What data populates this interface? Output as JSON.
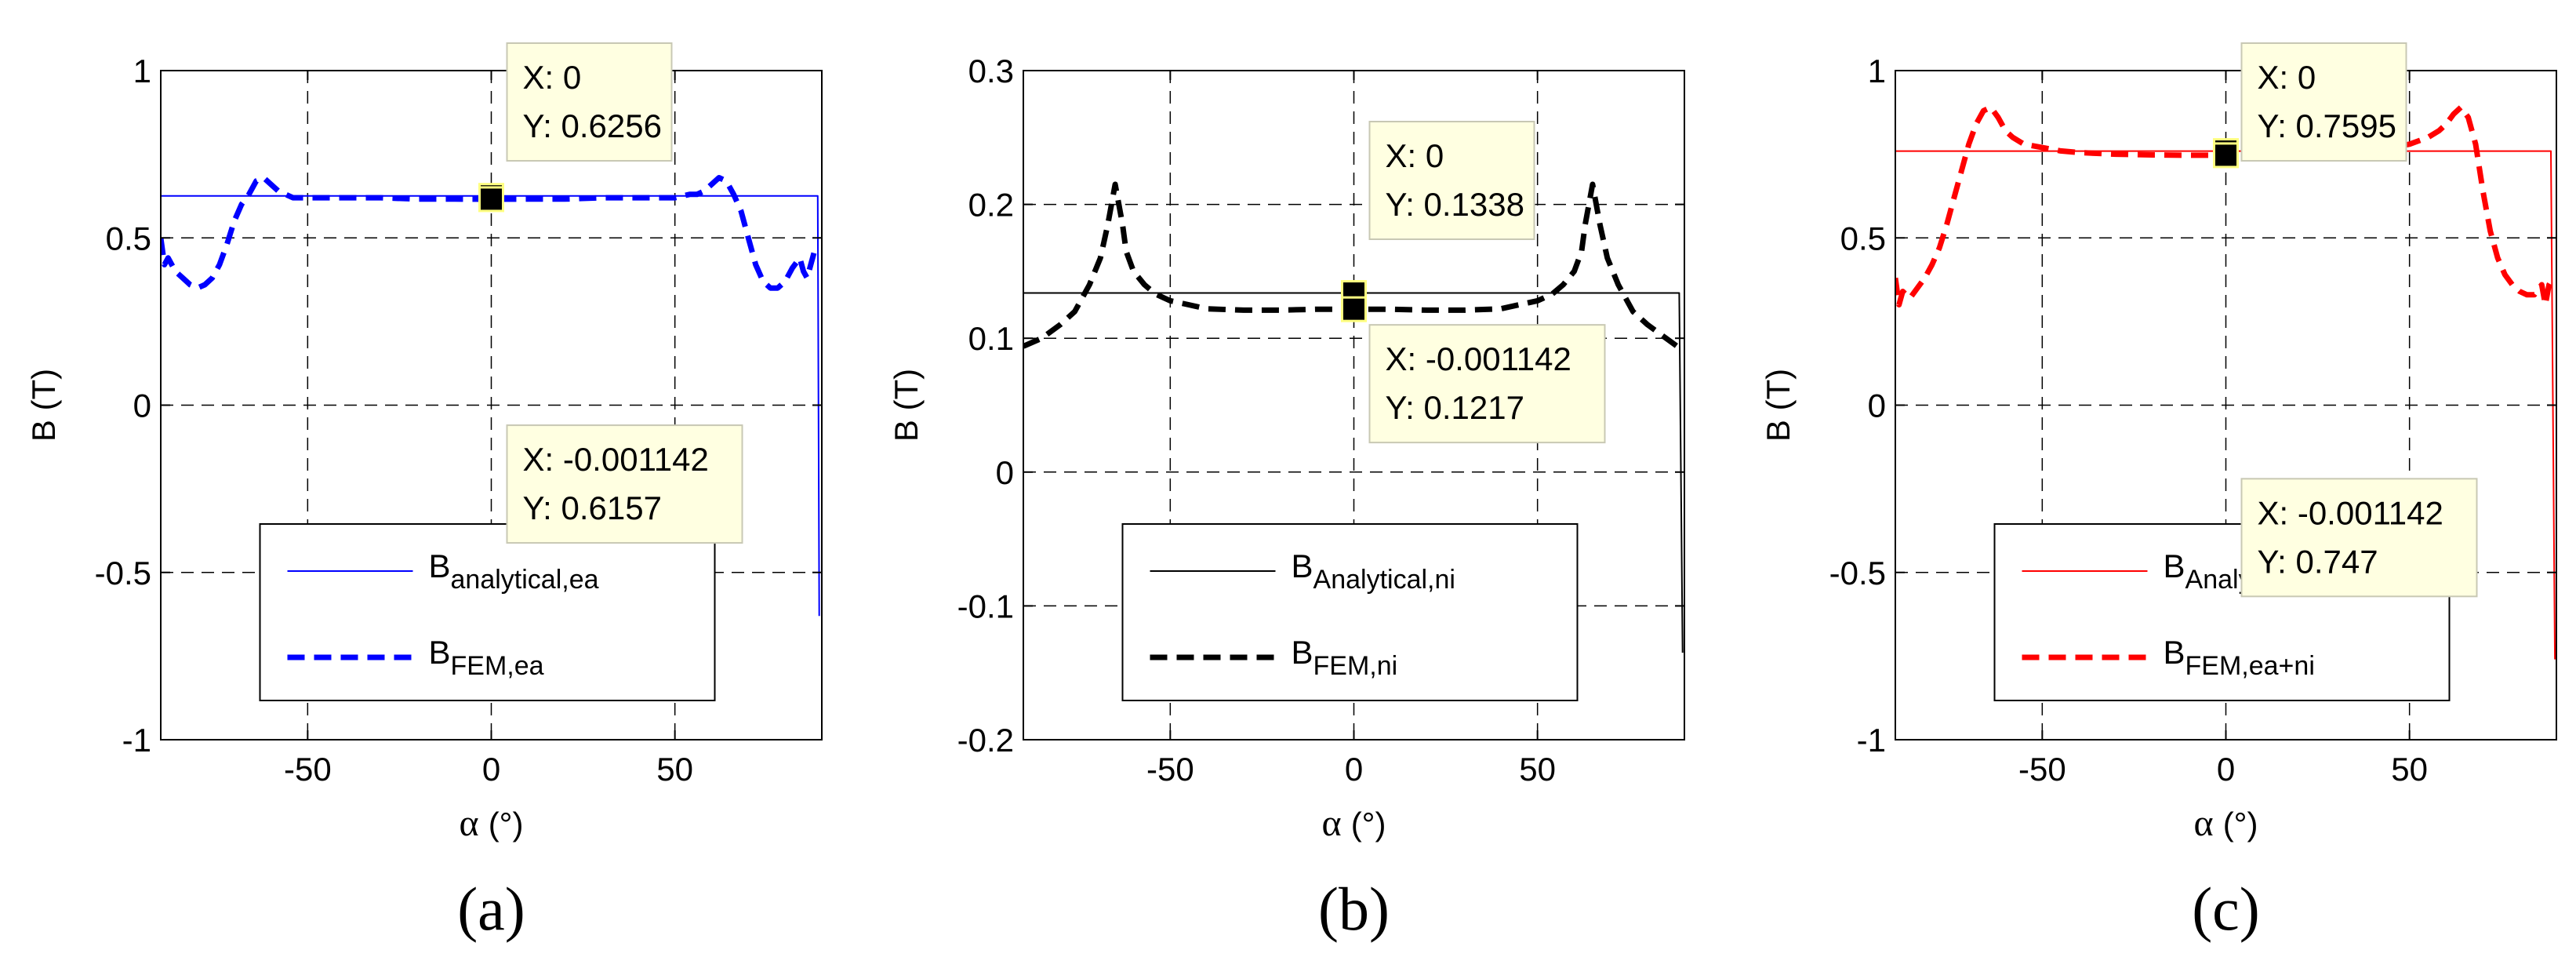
{
  "chart_data": [
    {
      "type": "line",
      "caption": "(a)",
      "xlabel_symbol": "α",
      "xlabel_unit": "(°)",
      "ylabel": "B (T)",
      "xlim": [
        -90,
        90
      ],
      "ylim": [
        -1,
        1
      ],
      "xticks": [
        -50,
        0,
        50
      ],
      "xtick_labels": [
        "-50",
        "0",
        "50"
      ],
      "yticks": [
        -1,
        -0.5,
        0,
        0.5,
        1
      ],
      "ytick_labels": [
        "-1",
        "-0.5",
        "0",
        "0.5",
        "1"
      ],
      "grid": true,
      "legend_position": "bottom-center",
      "series": [
        {
          "name": "analytical",
          "legend_main": "B",
          "legend_sub": "analytical,ea",
          "color": "#0000ff",
          "style": "solid",
          "x": [
            -90,
            88.9,
            89.3
          ],
          "y": [
            0.6256,
            0.6256,
            -0.63
          ]
        },
        {
          "name": "fem",
          "legend_main": "B",
          "legend_sub": "FEM,ea",
          "color": "#0000ff",
          "style": "dashed",
          "x": [
            -90,
            -89,
            -88,
            -86,
            -84,
            -82,
            -80,
            -78,
            -76,
            -74,
            -72,
            -70,
            -68,
            -66,
            -64,
            -62,
            -60,
            -58,
            -56,
            -54,
            -50,
            -40,
            -30,
            -20,
            -10,
            0,
            10,
            20,
            30,
            40,
            50,
            54,
            56,
            58,
            60,
            62,
            64,
            66,
            68,
            70,
            72,
            74,
            76,
            78,
            80,
            82,
            84,
            85,
            86,
            87,
            88,
            89
          ],
          "y": [
            0.5,
            0.42,
            0.44,
            0.4,
            0.38,
            0.36,
            0.35,
            0.36,
            0.38,
            0.42,
            0.48,
            0.55,
            0.6,
            0.63,
            0.67,
            0.68,
            0.66,
            0.64,
            0.63,
            0.62,
            0.62,
            0.62,
            0.62,
            0.616,
            0.616,
            0.6157,
            0.616,
            0.616,
            0.62,
            0.62,
            0.62,
            0.63,
            0.63,
            0.64,
            0.66,
            0.68,
            0.67,
            0.63,
            0.58,
            0.5,
            0.42,
            0.37,
            0.35,
            0.35,
            0.37,
            0.41,
            0.44,
            0.4,
            0.38,
            0.42,
            0.46,
            0.48
          ]
        }
      ],
      "datatips": [
        {
          "x": 0,
          "y": 0.6256,
          "x_label": "X: 0",
          "y_label": "Y: 0.6256",
          "side": "above"
        },
        {
          "x": -0.001142,
          "y": 0.6157,
          "x_label": "X: -0.001142",
          "y_label": "Y: 0.6157",
          "side": "below"
        }
      ]
    },
    {
      "type": "line",
      "caption": "(b)",
      "xlabel_symbol": "α",
      "xlabel_unit": "(°)",
      "ylabel": "B (T)",
      "xlim": [
        -90,
        90
      ],
      "ylim": [
        -0.2,
        0.3
      ],
      "xticks": [
        -50,
        0,
        50
      ],
      "xtick_labels": [
        "-50",
        "0",
        "50"
      ],
      "yticks": [
        -0.2,
        -0.1,
        0,
        0.1,
        0.2,
        0.3
      ],
      "ytick_labels": [
        "-0.2",
        "-0.1",
        "0",
        "0.1",
        "0.2",
        "0.3"
      ],
      "grid": true,
      "legend_position": "bottom-center",
      "series": [
        {
          "name": "analytical",
          "legend_main": "B",
          "legend_sub": "Analytical,ni",
          "color": "#000000",
          "style": "solid",
          "x": [
            -90,
            88.6,
            89.5
          ],
          "y": [
            0.1338,
            0.1338,
            -0.135
          ]
        },
        {
          "name": "fem",
          "legend_main": "B",
          "legend_sub": "FEM,ni",
          "color": "#000000",
          "style": "dashed",
          "x": [
            -90,
            -85,
            -80,
            -76,
            -72,
            -69,
            -67,
            -66,
            -65,
            -64,
            -63,
            -62,
            -60,
            -57,
            -54,
            -50,
            -45,
            -40,
            -30,
            -20,
            -10,
            0,
            10,
            20,
            30,
            40,
            45,
            50,
            54,
            57,
            60,
            62,
            63,
            64,
            65,
            66,
            67,
            69,
            72,
            76,
            80,
            85,
            88,
            89
          ],
          "y": [
            0.094,
            0.1,
            0.11,
            0.12,
            0.14,
            0.16,
            0.185,
            0.2,
            0.215,
            0.2,
            0.185,
            0.165,
            0.15,
            0.14,
            0.133,
            0.128,
            0.125,
            0.122,
            0.121,
            0.121,
            0.1217,
            0.1217,
            0.1217,
            0.121,
            0.121,
            0.122,
            0.125,
            0.128,
            0.133,
            0.14,
            0.15,
            0.165,
            0.185,
            0.2,
            0.215,
            0.2,
            0.185,
            0.16,
            0.14,
            0.12,
            0.11,
            0.1,
            0.094,
            0.092
          ]
        }
      ],
      "datatips": [
        {
          "x": 0,
          "y": 0.1338,
          "x_label": "X: 0",
          "y_label": "Y: 0.1338",
          "side": "above"
        },
        {
          "x": -0.001142,
          "y": 0.1217,
          "x_label": "X: -0.001142",
          "y_label": "Y: 0.1217",
          "side": "below"
        }
      ]
    },
    {
      "type": "line",
      "caption": "(c)",
      "xlabel_symbol": "α",
      "xlabel_unit": "(°)",
      "ylabel": "B (T)",
      "xlim": [
        -90,
        90
      ],
      "ylim": [
        -1,
        1
      ],
      "xticks": [
        -50,
        0,
        50
      ],
      "xtick_labels": [
        "-50",
        "0",
        "50"
      ],
      "yticks": [
        -1,
        -0.5,
        0,
        0.5,
        1
      ],
      "ytick_labels": [
        "-1",
        "-0.5",
        "0",
        "0.5",
        "1"
      ],
      "grid": true,
      "legend_position": "bottom-center",
      "series": [
        {
          "name": "analytical",
          "legend_main": "B",
          "legend_sub": "Analytical,ea+ni",
          "color": "#ff0000",
          "style": "solid",
          "x": [
            -90,
            88.5,
            89.6
          ],
          "y": [
            0.7595,
            0.7595,
            -0.76
          ]
        },
        {
          "name": "fem",
          "legend_main": "B",
          "legend_sub": "FEM,ea+ni",
          "color": "#ff0000",
          "style": "dashed",
          "x": [
            -90,
            -89,
            -88,
            -86,
            -84,
            -82,
            -80,
            -78,
            -76,
            -74,
            -72,
            -70,
            -68,
            -66,
            -64,
            -62,
            -60,
            -58,
            -55,
            -50,
            -45,
            -40,
            -30,
            -20,
            -10,
            0,
            10,
            20,
            30,
            40,
            45,
            50,
            55,
            58,
            60,
            62,
            64,
            66,
            68,
            70,
            72,
            74,
            76,
            78,
            80,
            82,
            84,
            86,
            87,
            88,
            89
          ],
          "y": [
            0.38,
            0.3,
            0.34,
            0.32,
            0.35,
            0.38,
            0.42,
            0.47,
            0.54,
            0.62,
            0.7,
            0.78,
            0.84,
            0.88,
            0.89,
            0.86,
            0.82,
            0.8,
            0.78,
            0.77,
            0.76,
            0.755,
            0.75,
            0.748,
            0.747,
            0.747,
            0.748,
            0.75,
            0.755,
            0.76,
            0.77,
            0.78,
            0.8,
            0.82,
            0.84,
            0.87,
            0.89,
            0.86,
            0.78,
            0.64,
            0.52,
            0.44,
            0.39,
            0.36,
            0.34,
            0.33,
            0.33,
            0.36,
            0.3,
            0.36,
            0.38
          ]
        }
      ],
      "datatips": [
        {
          "x": 0,
          "y": 0.7595,
          "x_label": "X: 0",
          "y_label": "Y: 0.7595",
          "side": "above"
        },
        {
          "x": -0.001142,
          "y": 0.747,
          "x_label": "X: -0.001142",
          "y_label": "Y: 0.747",
          "side": "below"
        }
      ]
    }
  ]
}
